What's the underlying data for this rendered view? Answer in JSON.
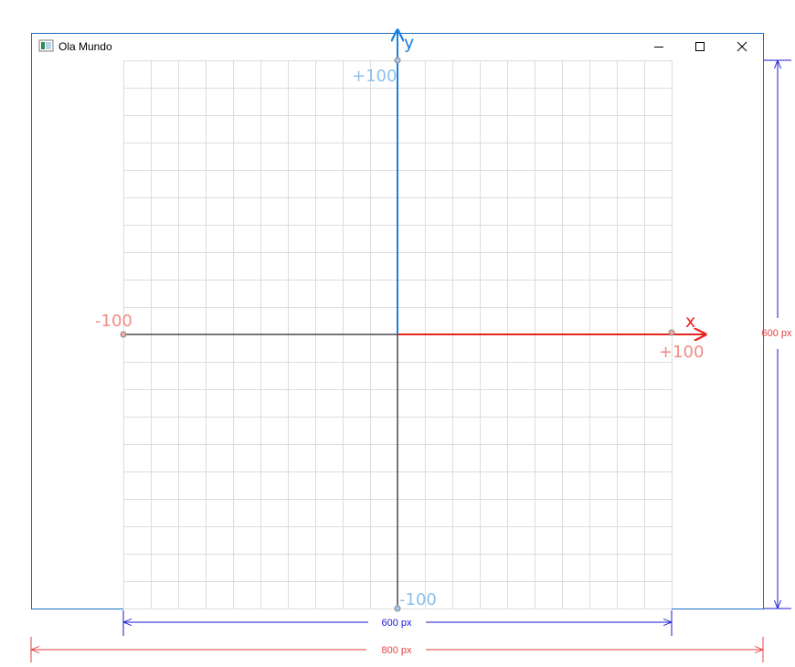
{
  "window": {
    "title": "Ola Mundo",
    "controls": {
      "minimize": "minimize-icon",
      "maximize": "maximize-icon",
      "close": "close-icon"
    }
  },
  "diagram": {
    "x_axis_name": "x",
    "y_axis_name": "y",
    "x_max_label": "+100",
    "x_min_label": "-100",
    "y_max_label": "+100",
    "y_min_label": "-100",
    "grid_divisions": 20,
    "dim_inner_width": "600 px",
    "dim_outer_width": "800 px",
    "dim_height": "600 px"
  },
  "colors": {
    "x_axis": "#e8231c",
    "y_axis": "#1a7fe0",
    "grid": "#dcdcdc",
    "x_label": "#f08c86",
    "y_label": "#8cc0ec",
    "dim_blue": "#1a1ad0",
    "dim_red": "#e84040",
    "window_border": "#1a6fc0"
  }
}
